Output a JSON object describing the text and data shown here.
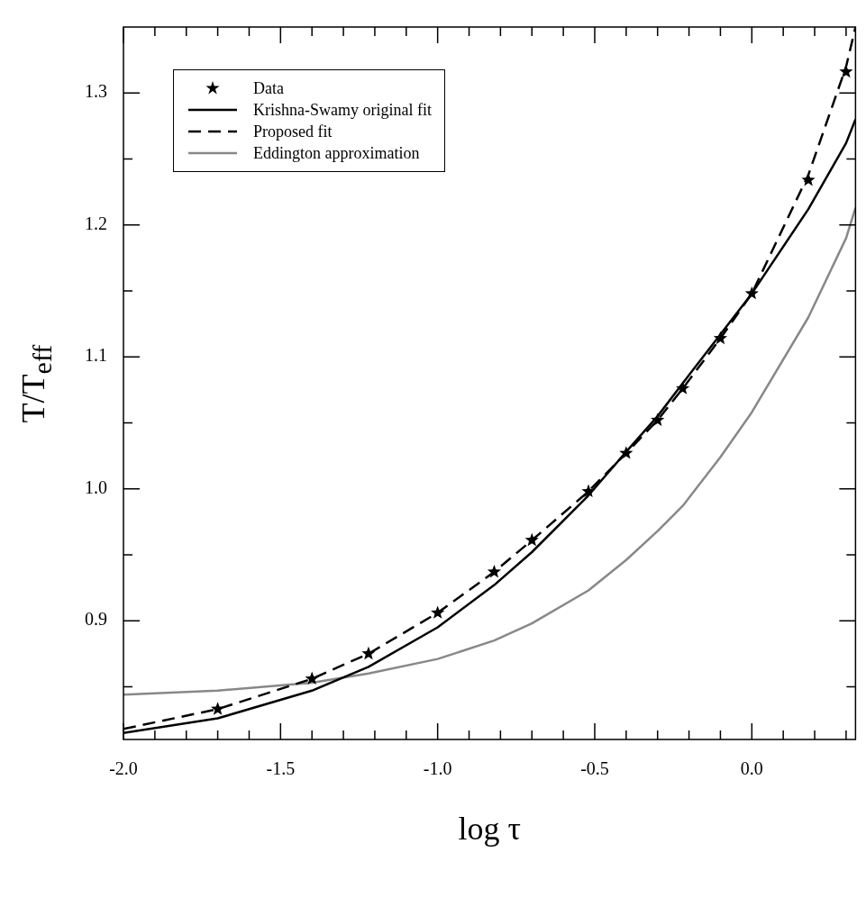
{
  "chart_data": {
    "type": "line",
    "xlabel": "log τ",
    "ylabel": "T/T$_{eff}$",
    "legend": "top left",
    "grid": false,
    "xlim": [
      -2.0,
      0.33
    ],
    "ylim": [
      0.81,
      1.35
    ],
    "xticks": [
      {
        "value": -2.0,
        "label": "-2.0"
      },
      {
        "value": -1.9,
        "label": null
      },
      {
        "value": -1.8,
        "label": null
      },
      {
        "value": -1.7,
        "label": null
      },
      {
        "value": -1.6,
        "label": null
      },
      -1.5,
      {
        "value": -1.4,
        "label": null
      },
      {
        "value": -1.3,
        "label": null
      },
      {
        "value": -1.2,
        "label": null
      },
      {
        "value": -1.1,
        "label": null
      },
      {
        "value": -1.0,
        "label": "-1.0"
      },
      {
        "value": -0.9,
        "label": null
      },
      {
        "value": -0.8,
        "label": null
      },
      {
        "value": -0.7,
        "label": null
      },
      {
        "value": -0.6,
        "label": null
      },
      -0.5,
      {
        "value": -0.4,
        "label": null
      },
      {
        "value": -0.3,
        "label": null
      },
      {
        "value": -0.2,
        "label": null
      },
      {
        "value": -0.1,
        "label": null
      },
      {
        "value": 0.0,
        "label": "0.0"
      },
      {
        "value": 0.1,
        "label": null
      },
      {
        "value": 0.2,
        "label": null
      },
      {
        "value": 0.3,
        "label": null
      }
    ],
    "yticks": [
      {
        "value": 0.85,
        "label": null
      },
      0.9,
      {
        "value": 0.95,
        "label": null
      },
      {
        "value": 1.0,
        "label": "1.0"
      },
      {
        "value": 1.05,
        "label": null
      },
      1.1,
      {
        "value": 1.15,
        "label": null
      },
      1.2,
      {
        "value": 1.25,
        "label": null
      },
      1.3
    ],
    "series": [
      {
        "name": "Data",
        "type": "scatter",
        "marker": "star",
        "color": "#000000",
        "x": [
          -1.7,
          -1.4,
          -1.22,
          -1.0,
          -0.82,
          -0.7,
          -0.52,
          -0.4,
          -0.3,
          -0.22,
          -0.1,
          0.0,
          0.18,
          0.3
        ],
        "values": [
          0.833,
          0.856,
          0.875,
          0.906,
          0.937,
          0.961,
          0.998,
          1.027,
          1.052,
          1.076,
          1.114,
          1.148,
          1.234,
          1.316
        ]
      },
      {
        "name": "Krishna-Swamy original fit",
        "line_style": "solid",
        "marker": "none",
        "color": "#000000",
        "x": [
          -2.0,
          -1.7,
          -1.4,
          -1.22,
          -1.0,
          -0.82,
          -0.7,
          -0.52,
          -0.4,
          -0.3,
          -0.22,
          -0.1,
          0.0,
          0.18,
          0.3,
          0.33
        ],
        "values": [
          0.815,
          0.826,
          0.847,
          0.865,
          0.895,
          0.927,
          0.952,
          0.995,
          1.028,
          1.055,
          1.08,
          1.117,
          1.148,
          1.212,
          1.262,
          1.28
        ]
      },
      {
        "name": "Proposed fit",
        "line_style": "dashed",
        "marker": "none",
        "color": "#000000",
        "x": [
          -2.0,
          -1.7,
          -1.4,
          -1.22,
          -1.0,
          -0.82,
          -0.7,
          -0.52,
          -0.4,
          -0.3,
          -0.22,
          -0.1,
          0.0,
          0.18,
          0.3,
          0.33
        ],
        "values": [
          0.818,
          0.833,
          0.856,
          0.875,
          0.906,
          0.937,
          0.961,
          0.998,
          1.027,
          1.052,
          1.076,
          1.114,
          1.148,
          1.238,
          1.32,
          1.35
        ]
      },
      {
        "name": "Eddington approximation",
        "line_style": "solid",
        "marker": "none",
        "color": "#888888",
        "x": [
          -2.0,
          -1.7,
          -1.4,
          -1.22,
          -1.0,
          -0.82,
          -0.7,
          -0.52,
          -0.4,
          -0.3,
          -0.22,
          -0.1,
          0.0,
          0.18,
          0.3,
          0.33
        ],
        "values": [
          0.844,
          0.847,
          0.853,
          0.86,
          0.871,
          0.885,
          0.898,
          0.923,
          0.946,
          0.968,
          0.987,
          1.024,
          1.058,
          1.13,
          1.19,
          1.213
        ]
      }
    ]
  }
}
